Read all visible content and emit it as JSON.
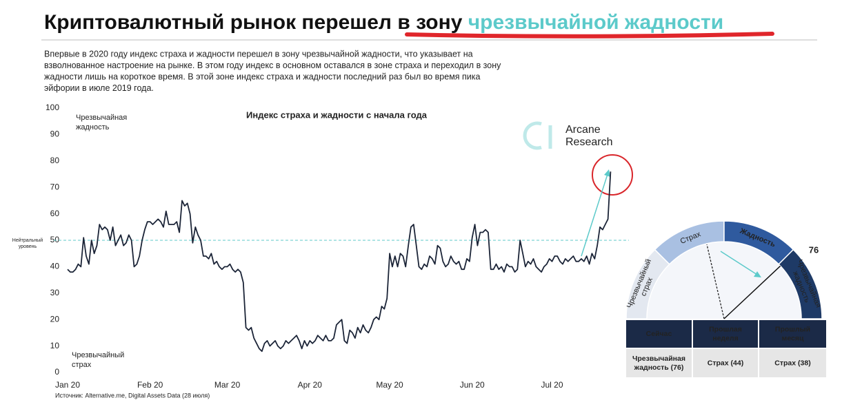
{
  "header": {
    "title_start": "Криптовалютный рынок перешел в зону ",
    "title_highlight": "чрезвычайной жадности"
  },
  "intro": [
    "Впервые в 2020 году индекс страха и жадности перешел в зону чрезвычайной жадности, что указывает на",
    "взволнованное настроение на рынке. В этом году индекс в основном оставался в зоне страха и переходил в зону",
    "жадности лишь на короткое время. В этой зоне индекс страха и жадности последний раз был во время пика",
    "эйфории в июле 2019 года."
  ],
  "logo": [
    "Arcane",
    "Research"
  ],
  "chart_data": {
    "type": "line",
    "title": "Индекс страха и жадности с начала года",
    "color": "#1b2437",
    "ylim": [
      0,
      100
    ],
    "yticks": [
      0,
      10,
      20,
      30,
      40,
      50,
      60,
      70,
      80,
      90,
      100
    ],
    "grid": false,
    "top_label": [
      "Чрезвычайная",
      "жадность"
    ],
    "bottom_label": [
      "Чрезвычайный",
      "страх"
    ],
    "neutral_label": [
      "Нейтральный",
      "уровень"
    ],
    "neutral_level": 50,
    "source": "Источник: Alternative.me, Digital Assets Data (28 июля)",
    "categories": [
      "Jan 20",
      null,
      null,
      null,
      null,
      null,
      null,
      null,
      null,
      null,
      null,
      null,
      null,
      null,
      null,
      null,
      null,
      null,
      null,
      null,
      null,
      null,
      null,
      null,
      null,
      null,
      null,
      null,
      null,
      null,
      null,
      "Feb 20",
      null,
      null,
      null,
      null,
      null,
      null,
      null,
      null,
      null,
      null,
      null,
      null,
      null,
      null,
      null,
      null,
      null,
      null,
      null,
      null,
      null,
      null,
      null,
      null,
      null,
      null,
      null,
      null,
      "Mar 20",
      null,
      null,
      null,
      null,
      null,
      null,
      null,
      null,
      null,
      null,
      null,
      null,
      null,
      null,
      null,
      null,
      null,
      null,
      null,
      null,
      null,
      null,
      null,
      null,
      null,
      null,
      null,
      null,
      null,
      null,
      "Apr 20",
      null,
      null,
      null,
      null,
      null,
      null,
      null,
      null,
      null,
      null,
      null,
      null,
      null,
      null,
      null,
      null,
      null,
      null,
      null,
      null,
      null,
      null,
      null,
      null,
      null,
      null,
      null,
      null,
      null,
      "May 20",
      null,
      null,
      null,
      null,
      null,
      null,
      null,
      null,
      null,
      null,
      null,
      null,
      null,
      null,
      null,
      null,
      null,
      null,
      null,
      null,
      null,
      null,
      null,
      null,
      null,
      null,
      null,
      null,
      null,
      null,
      "Jun 20",
      null,
      null,
      null,
      null,
      null,
      null,
      null,
      null,
      null,
      null,
      null,
      null,
      null,
      null,
      null,
      null,
      null,
      null,
      null,
      null,
      null,
      null,
      null,
      null,
      null,
      null,
      null,
      null,
      null,
      "Jul 20",
      null,
      null,
      null,
      null,
      null,
      null,
      null,
      null,
      null,
      null,
      null,
      null,
      null,
      null,
      null,
      null,
      null,
      null,
      null,
      null,
      null,
      null
    ],
    "values": [
      39,
      38,
      38,
      39,
      41,
      40,
      51,
      44,
      41,
      50,
      45,
      48,
      56,
      54,
      55,
      54,
      50,
      55,
      48,
      50,
      52,
      48,
      49,
      52,
      50,
      40,
      41,
      44,
      50,
      54,
      57,
      57,
      56,
      57,
      58,
      57,
      55,
      61,
      56,
      56,
      56,
      57,
      53,
      65,
      63,
      64,
      60,
      49,
      55,
      52,
      50,
      44,
      44,
      43,
      45,
      41,
      42,
      40,
      39,
      40,
      40,
      41,
      39,
      38,
      39,
      38,
      34,
      17,
      16,
      17,
      13,
      11,
      9,
      8,
      11,
      12,
      10,
      11,
      12,
      10,
      9,
      10,
      12,
      11,
      12,
      13,
      14,
      12,
      9,
      12,
      10,
      12,
      11,
      12,
      14,
      13,
      12,
      14,
      12,
      12,
      13,
      18,
      19,
      20,
      12,
      11,
      16,
      15,
      13,
      17,
      15,
      18,
      16,
      15,
      17,
      20,
      21,
      20,
      25,
      24,
      28,
      45,
      40,
      44,
      40,
      45,
      44,
      40,
      48,
      55,
      56,
      48,
      40,
      39,
      41,
      40,
      44,
      43,
      41,
      48,
      47,
      42,
      40,
      41,
      44,
      42,
      41,
      42,
      39,
      39,
      43,
      42,
      51,
      56,
      48,
      53,
      53,
      54,
      53,
      39,
      39,
      41,
      39,
      40,
      38,
      41,
      40,
      40,
      38,
      39,
      50,
      45,
      40,
      42,
      41,
      43,
      40,
      39,
      38,
      40,
      41,
      43,
      42,
      44,
      44,
      42,
      41,
      43,
      42,
      43,
      44,
      42,
      42,
      43,
      42,
      44,
      41,
      45,
      43,
      48,
      55,
      54,
      56,
      58,
      76
    ]
  },
  "gauge": {
    "value": 76,
    "segments": [
      [
        "Чрезвычайный",
        "страх"
      ],
      [
        "Страх"
      ],
      [
        "Жадность"
      ],
      [
        "Чрезвычайная",
        "жадность"
      ]
    ]
  },
  "table": {
    "headers": [
      [
        "Сейчас"
      ],
      [
        "Прошлая",
        "неделя"
      ],
      [
        "Прошлый",
        "месяц"
      ]
    ],
    "rows": [
      [
        [
          "Чрезвычайная",
          "жадность (76)"
        ],
        [
          "Страх (44)"
        ],
        [
          "Страх (38)"
        ]
      ]
    ]
  }
}
